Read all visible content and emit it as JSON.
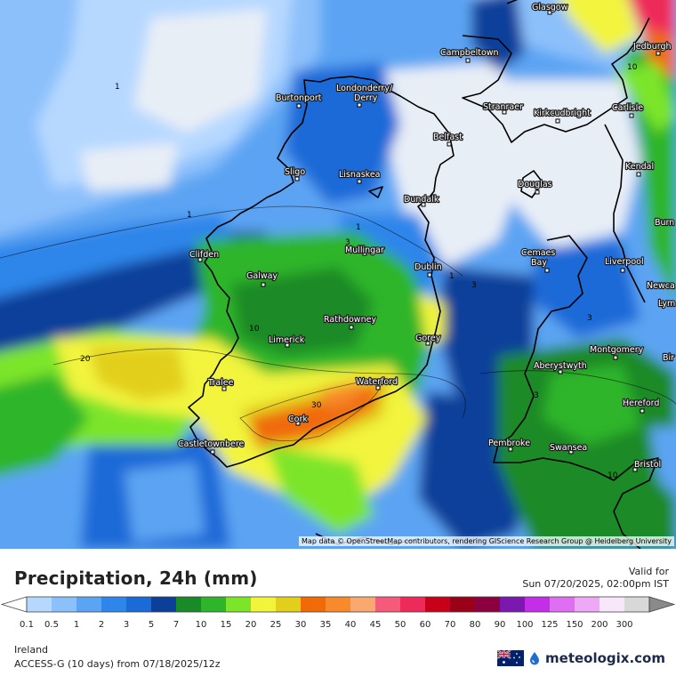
{
  "map": {
    "attribution": "Map data © OpenStreetMap contributors, rendering GIScience Research Group @ Heidelberg University",
    "cities": [
      {
        "name": "Glasgow"
      },
      {
        "name": "Jedburgh"
      },
      {
        "name": "Campbeltown"
      },
      {
        "name": "Londonderry/"
      },
      {
        "name": "Derry"
      },
      {
        "name": "Burtonport"
      },
      {
        "name": "Stranraer"
      },
      {
        "name": "Kirkcudbright"
      },
      {
        "name": "Carlisle"
      },
      {
        "name": "Belfast"
      },
      {
        "name": "Kendal"
      },
      {
        "name": "Sligo"
      },
      {
        "name": "Lisnaskea"
      },
      {
        "name": "Douglas"
      },
      {
        "name": "Dundalk"
      },
      {
        "name": "Burn"
      },
      {
        "name": "Mullingar"
      },
      {
        "name": "Clifden"
      },
      {
        "name": "Cemaes"
      },
      {
        "name": "Bay"
      },
      {
        "name": "Liverpool"
      },
      {
        "name": "Dublin"
      },
      {
        "name": "Galway"
      },
      {
        "name": "Newca"
      },
      {
        "name": "Lym"
      },
      {
        "name": "Rathdowney"
      },
      {
        "name": "Limerick"
      },
      {
        "name": "Gorey"
      },
      {
        "name": "Montgomery"
      },
      {
        "name": "Bir"
      },
      {
        "name": "Aberystwyth"
      },
      {
        "name": "Tralee"
      },
      {
        "name": "Waterford"
      },
      {
        "name": "Hereford"
      },
      {
        "name": "Cork"
      },
      {
        "name": "Castletownbere"
      },
      {
        "name": "Pembroke"
      },
      {
        "name": "Swansea"
      },
      {
        "name": "Bristol"
      }
    ],
    "contour_labels": [
      "1",
      "1",
      "1",
      "1",
      "3",
      "3",
      "3",
      "3",
      "10",
      "10",
      "10",
      "20",
      "30"
    ]
  },
  "legend": {
    "title": "Precipitation, 24h (mm)",
    "valid_label": "Valid for",
    "valid_time": "Sun 07/20/2025, 02:00pm IST",
    "scale": [
      {
        "label": "0.1",
        "color": "#b6d8ff"
      },
      {
        "label": "0.5",
        "color": "#8cc0fb"
      },
      {
        "label": "1",
        "color": "#5ba4f3"
      },
      {
        "label": "2",
        "color": "#2f86ea"
      },
      {
        "label": "3",
        "color": "#1a6ad8"
      },
      {
        "label": "5",
        "color": "#0b3f9a"
      },
      {
        "label": "7",
        "color": "#1a8a28"
      },
      {
        "label": "10",
        "color": "#2fb52c"
      },
      {
        "label": "15",
        "color": "#7ce52a"
      },
      {
        "label": "20",
        "color": "#f2f43c"
      },
      {
        "label": "25",
        "color": "#e2cf1c"
      },
      {
        "label": "30",
        "color": "#f06a08"
      },
      {
        "label": "35",
        "color": "#f88a2c"
      },
      {
        "label": "40",
        "color": "#f9a870"
      },
      {
        "label": "45",
        "color": "#f65a7a"
      },
      {
        "label": "50",
        "color": "#ee2a5a"
      },
      {
        "label": "60",
        "color": "#c8001a"
      },
      {
        "label": "70",
        "color": "#9a0018"
      },
      {
        "label": "80",
        "color": "#8c0040"
      },
      {
        "label": "90",
        "color": "#7a18b0"
      },
      {
        "label": "100",
        "color": "#c42ee8"
      },
      {
        "label": "125",
        "color": "#e06ef2"
      },
      {
        "label": "150",
        "color": "#efa8f6"
      },
      {
        "label": "200",
        "color": "#f8e6fb"
      },
      {
        "label": "300",
        "color": "#d8d8d8"
      }
    ],
    "region": "Ireland",
    "model": "ACCESS-G (10 days)  from  07/18/2025/12z",
    "brand": "meteologix.com",
    "flag_icon": "australia-flag-icon",
    "logo_icon": "meteologix-drop-icon"
  }
}
